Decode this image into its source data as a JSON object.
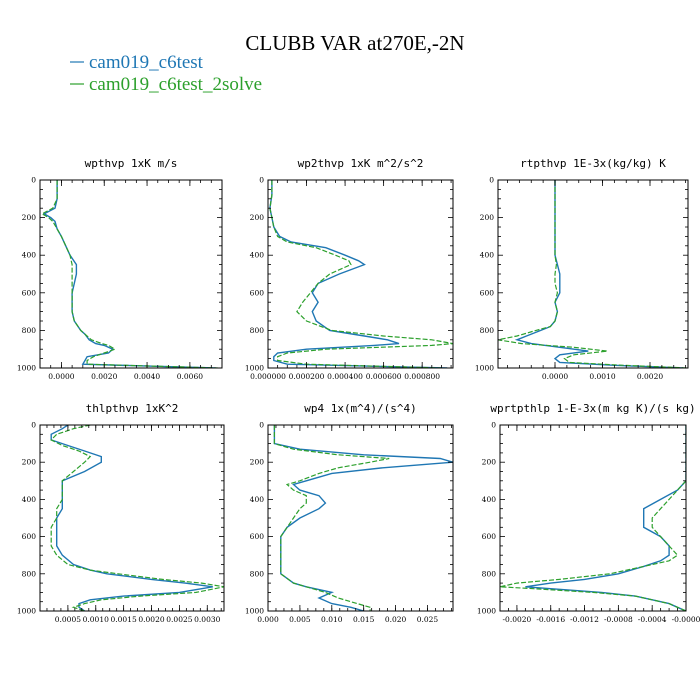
{
  "chart_data": {
    "title": "CLUBB VAR at270E,-2N",
    "legend": [
      {
        "name": "cam019_c6test",
        "color": "#1f77b4",
        "dash": "solid"
      },
      {
        "name": "cam019_c6test_2solve",
        "color": "#2ca02c",
        "dash": "dashed"
      }
    ],
    "yticks": [
      "0",
      "200",
      "400",
      "600",
      "800",
      "1000"
    ],
    "panels": [
      {
        "type": "line",
        "title": "wpthvp   1xK m/s",
        "xlim": [
          -0.001,
          0.0075
        ],
        "ylim": [
          0,
          1000
        ],
        "xticks": [
          {
            "v": 0,
            "label": "0.0000"
          },
          {
            "v": 0.002,
            "label": "0.0020"
          },
          {
            "v": 0.004,
            "label": "0.0040"
          },
          {
            "v": 0.006,
            "label": "0.0060"
          }
        ],
        "series": [
          {
            "y": [
              0,
              50,
              100,
              150,
              180,
              200,
              220,
              260,
              300,
              350,
              400,
              450,
              500,
              550,
              600,
              650,
              700,
              750,
              800,
              820,
              850,
              870,
              880,
              900,
              920,
              940,
              960,
              980,
              1000
            ],
            "x": [
              -0.0002,
              -0.0002,
              -0.0002,
              -0.0003,
              -0.0008,
              -0.0005,
              -0.0003,
              -0.0002,
              0.0,
              0.0002,
              0.0004,
              0.0007,
              0.0007,
              0.0006,
              0.0005,
              0.0005,
              0.0005,
              0.0006,
              0.0009,
              0.0011,
              0.0013,
              0.0016,
              0.002,
              0.0024,
              0.0022,
              0.0012,
              0.0011,
              0.001,
              0.0072
            ]
          },
          {
            "y": [
              0,
              50,
              100,
              150,
              180,
              200,
              220,
              260,
              300,
              350,
              400,
              450,
              500,
              550,
              600,
              650,
              700,
              750,
              800,
              820,
              850,
              870,
              880,
              900,
              920,
              940,
              960,
              980,
              1000
            ],
            "x": [
              -0.0002,
              -0.0002,
              -0.0002,
              -0.0004,
              -0.0009,
              -0.0006,
              -0.0004,
              -0.0002,
              0.0,
              0.0002,
              0.0004,
              0.0005,
              0.0005,
              0.0005,
              0.0005,
              0.0005,
              0.0005,
              0.0006,
              0.0009,
              0.0011,
              0.0014,
              0.0019,
              0.0022,
              0.0025,
              0.002,
              0.0015,
              0.0012,
              0.0012,
              0.0073
            ]
          }
        ]
      },
      {
        "type": "line",
        "title": "wp2thvp   1xK m^2/s^2",
        "xlim": [
          0,
          0.00096
        ],
        "ylim": [
          0,
          1000
        ],
        "xticks": [
          {
            "v": 0,
            "label": "0.000000"
          },
          {
            "v": 0.0002,
            "label": "0.000200"
          },
          {
            "v": 0.0004,
            "label": "0.000400"
          },
          {
            "v": 0.0006,
            "label": "0.000600"
          },
          {
            "v": 0.0008,
            "label": "0.000800"
          }
        ],
        "series": [
          {
            "y": [
              0,
              80,
              150,
              200,
              250,
              300,
              330,
              360,
              400,
              430,
              450,
              500,
              550,
              600,
              650,
              700,
              750,
              800,
              830,
              850,
              870,
              880,
              900,
              920,
              940,
              960,
              980,
              1000
            ],
            "x": [
              2e-05,
              2e-05,
              1e-05,
              2e-05,
              3e-05,
              6e-05,
              0.00012,
              0.0003,
              0.0004,
              0.00047,
              0.0005,
              0.00037,
              0.00026,
              0.00023,
              0.00026,
              0.00023,
              0.00025,
              0.00032,
              0.0005,
              0.00062,
              0.00068,
              0.00055,
              0.0002,
              5e-05,
              3e-05,
              3e-05,
              0.0001,
              0.00093
            ]
          },
          {
            "y": [
              0,
              80,
              150,
              200,
              250,
              300,
              330,
              360,
              400,
              430,
              450,
              500,
              550,
              600,
              650,
              700,
              750,
              800,
              830,
              850,
              870,
              880,
              900,
              920,
              940,
              960,
              980,
              1000
            ],
            "x": [
              2e-05,
              2e-05,
              1e-05,
              2e-05,
              3e-05,
              5e-05,
              0.0001,
              0.00025,
              0.00035,
              0.00042,
              0.00043,
              0.00032,
              0.00026,
              0.00022,
              0.00018,
              0.00015,
              0.0002,
              0.00033,
              0.0006,
              0.00085,
              0.00096,
              0.00085,
              0.0003,
              0.0001,
              5e-05,
              5e-05,
              0.0002,
              0.0009
            ]
          }
        ]
      },
      {
        "type": "line",
        "title": "rtpthvp   1E-3x(kg/kg) K",
        "xlim": [
          -0.0012,
          0.0028
        ],
        "ylim": [
          0,
          1000
        ],
        "xticks": [
          {
            "v": 0,
            "label": "0.0000"
          },
          {
            "v": 0.001,
            "label": "0.0010"
          },
          {
            "v": 0.002,
            "label": "0.0020"
          }
        ],
        "series": [
          {
            "y": [
              0,
              100,
              200,
              300,
              400,
              450,
              500,
              550,
              600,
              650,
              700,
              750,
              780,
              800,
              830,
              850,
              870,
              890,
              910,
              930,
              950,
              970,
              985,
              1000
            ],
            "x": [
              0.0,
              0.0,
              0.0,
              0.0,
              0.0,
              5e-05,
              0.0001,
              0.0001,
              0.0001,
              0.0,
              5e-05,
              0.0,
              -0.0001,
              -0.0003,
              -0.0006,
              -0.0008,
              -0.0005,
              0.0001,
              0.0007,
              0.0001,
              0.0,
              0.0001,
              0.0012,
              0.0027
            ]
          },
          {
            "y": [
              0,
              100,
              200,
              300,
              400,
              450,
              500,
              550,
              600,
              650,
              700,
              750,
              780,
              800,
              830,
              850,
              870,
              890,
              910,
              930,
              950,
              970,
              985,
              1000
            ],
            "x": [
              0.0,
              0.0,
              0.0,
              0.0,
              0.0,
              3e-05,
              0.0,
              0.0,
              5e-05,
              0.0,
              5e-05,
              0.0,
              -0.0001,
              -0.0004,
              -0.0008,
              -0.0012,
              -0.0007,
              0.0004,
              0.0011,
              0.0004,
              0.0002,
              0.0003,
              0.0014,
              0.0028
            ]
          }
        ]
      },
      {
        "type": "line",
        "title": "thlpthvp   1xK^2",
        "xlim": [
          0.0,
          0.0033
        ],
        "ylim": [
          0,
          1000
        ],
        "xticks": [
          {
            "v": 0.0005,
            "label": "0.0005"
          },
          {
            "v": 0.001,
            "label": "0.0010"
          },
          {
            "v": 0.0015,
            "label": "0.0015"
          },
          {
            "v": 0.002,
            "label": "0.0020"
          },
          {
            "v": 0.0025,
            "label": "0.0025"
          },
          {
            "v": 0.003,
            "label": "0.0030"
          }
        ],
        "series": [
          {
            "y": [
              0,
              20,
              50,
              80,
              110,
              140,
              170,
              200,
              250,
              300,
              350,
              400,
              450,
              500,
              550,
              600,
              650,
              700,
              750,
              780,
              800,
              830,
              850,
              870,
              900,
              920,
              940,
              960,
              980,
              1000
            ],
            "x": [
              0.0005,
              0.0004,
              0.0002,
              0.0002,
              0.0005,
              0.0008,
              0.0011,
              0.0011,
              0.0008,
              0.0004,
              0.0004,
              0.0004,
              0.0004,
              0.0003,
              0.0003,
              0.0003,
              0.0003,
              0.0004,
              0.0006,
              0.0009,
              0.0012,
              0.002,
              0.0026,
              0.0031,
              0.0025,
              0.0015,
              0.0009,
              0.0007,
              0.0007,
              0.0008
            ]
          },
          {
            "y": [
              0,
              20,
              50,
              80,
              110,
              140,
              170,
              200,
              250,
              300,
              350,
              400,
              450,
              500,
              550,
              600,
              650,
              700,
              750,
              780,
              800,
              830,
              850,
              870,
              900,
              920,
              940,
              960,
              980,
              1000
            ],
            "x": [
              0.0009,
              0.0006,
              0.0003,
              0.0002,
              0.0004,
              0.0007,
              0.0009,
              0.0008,
              0.0006,
              0.0004,
              0.0004,
              0.0004,
              0.0003,
              0.0003,
              0.0002,
              0.0002,
              0.0002,
              0.0003,
              0.0005,
              0.0009,
              0.0014,
              0.0022,
              0.0029,
              0.0033,
              0.0028,
              0.0018,
              0.0011,
              0.0008,
              0.0006,
              0.0008
            ]
          }
        ]
      },
      {
        "type": "line",
        "title": "wp4   1x(m^4)/(s^4)",
        "xlim": [
          0.0,
          0.029
        ],
        "ylim": [
          0,
          1000
        ],
        "xticks": [
          {
            "v": 0,
            "label": "0.000"
          },
          {
            "v": 0.005,
            "label": "0.005"
          },
          {
            "v": 0.01,
            "label": "0.010"
          },
          {
            "v": 0.015,
            "label": "0.015"
          },
          {
            "v": 0.02,
            "label": "0.020"
          },
          {
            "v": 0.025,
            "label": "0.025"
          }
        ],
        "series": [
          {
            "y": [
              0,
              50,
              100,
              130,
              160,
              180,
              200,
              230,
              260,
              300,
              320,
              350,
              380,
              420,
              450,
              500,
              550,
              600,
              650,
              700,
              750,
              800,
              850,
              870,
              900,
              930,
              960,
              980,
              1000
            ],
            "x": [
              0.001,
              0.001,
              0.001,
              0.005,
              0.015,
              0.027,
              0.029,
              0.018,
              0.01,
              0.006,
              0.004,
              0.005,
              0.008,
              0.009,
              0.008,
              0.005,
              0.003,
              0.002,
              0.002,
              0.002,
              0.002,
              0.002,
              0.004,
              0.006,
              0.01,
              0.008,
              0.01,
              0.013,
              0.015
            ]
          },
          {
            "y": [
              0,
              50,
              100,
              130,
              160,
              180,
              200,
              230,
              260,
              300,
              320,
              350,
              380,
              420,
              450,
              500,
              550,
              600,
              650,
              700,
              750,
              800,
              850,
              870,
              900,
              930,
              960,
              980,
              1000
            ],
            "x": [
              0.001,
              0.001,
              0.001,
              0.004,
              0.011,
              0.019,
              0.016,
              0.011,
              0.008,
              0.005,
              0.003,
              0.004,
              0.006,
              0.006,
              0.005,
              0.004,
              0.003,
              0.002,
              0.002,
              0.002,
              0.002,
              0.002,
              0.004,
              0.006,
              0.009,
              0.011,
              0.014,
              0.016,
              0.016
            ]
          }
        ]
      },
      {
        "type": "line",
        "title": "wprtpthlp   1-E-3x(m kg K)/(s kg)",
        "xlim": [
          -0.0022,
          0.0
        ],
        "ylim": [
          0,
          1000
        ],
        "xticks": [
          {
            "v": -0.002,
            "label": "-0.0020"
          },
          {
            "v": -0.0016,
            "label": "-0.0016"
          },
          {
            "v": -0.0012,
            "label": "-0.0012"
          },
          {
            "v": -0.0008,
            "label": "-0.0008"
          },
          {
            "v": -0.0004,
            "label": "-0.0004"
          },
          {
            "v": 0.0,
            "label": "-0.0000"
          }
        ],
        "series": [
          {
            "y": [
              0,
              100,
              200,
              250,
              280,
              300,
              350,
              400,
              450,
              500,
              550,
              600,
              650,
              700,
              730,
              760,
              800,
              830,
              850,
              870,
              880,
              900,
              920,
              940,
              960,
              980,
              1000
            ],
            "x": [
              0.0,
              0.0,
              0.0,
              0.0,
              0.0,
              0.0,
              -0.0001,
              -0.0003,
              -0.0005,
              -0.0005,
              -0.0005,
              -0.0003,
              -0.0002,
              -0.0002,
              -0.0003,
              -0.0005,
              -0.0008,
              -0.0012,
              -0.0016,
              -0.0019,
              -0.0016,
              -0.001,
              -0.0006,
              -0.0004,
              -0.0002,
              -0.0001,
              0.0
            ]
          },
          {
            "y": [
              0,
              100,
              200,
              250,
              280,
              300,
              350,
              400,
              450,
              500,
              550,
              600,
              650,
              700,
              730,
              760,
              800,
              830,
              850,
              870,
              880,
              900,
              920,
              940,
              960,
              980,
              1000
            ],
            "x": [
              0.0,
              0.0,
              0.0,
              0.0,
              0.0,
              0.0,
              -0.0001,
              -0.0002,
              -0.0003,
              -0.0004,
              -0.0004,
              -0.0003,
              -0.0002,
              -0.0001,
              -0.0002,
              -0.0005,
              -0.0009,
              -0.0015,
              -0.002,
              -0.0022,
              -0.0018,
              -0.0011,
              -0.0006,
              -0.0004,
              -0.0002,
              -0.0001,
              0.0
            ]
          }
        ]
      }
    ]
  }
}
